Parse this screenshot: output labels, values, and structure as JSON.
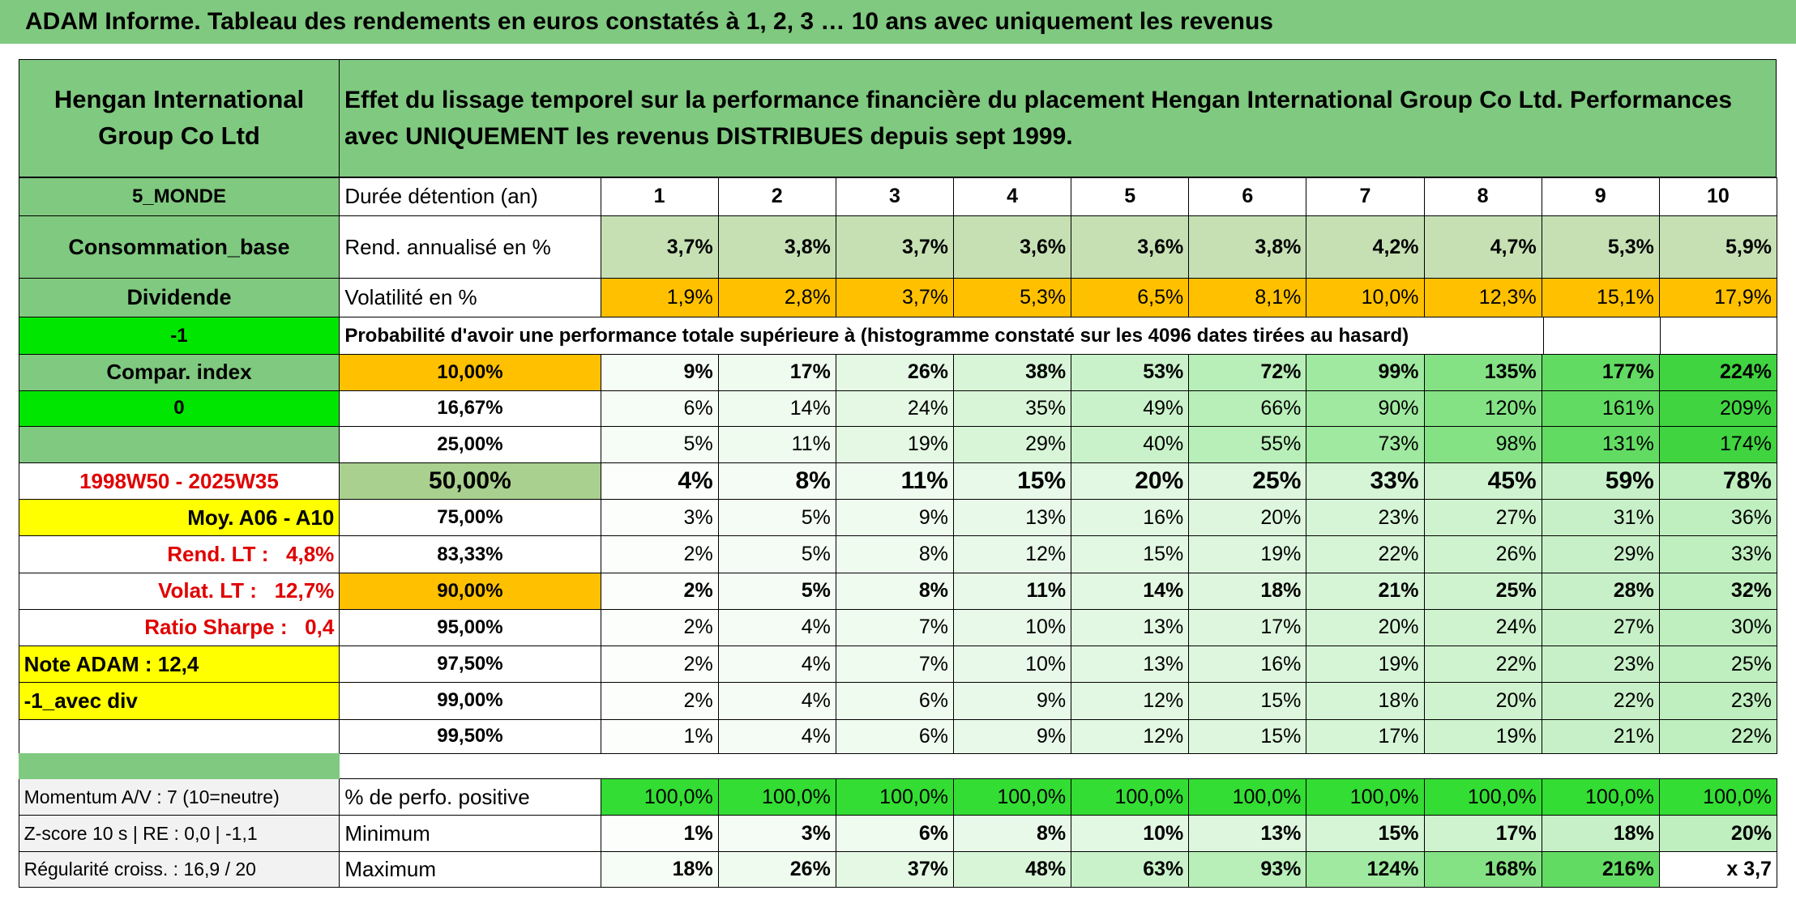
{
  "title": "ADAM Informe. Tableau des rendements en euros constatés à 1, 2, 3 … 10 ans avec uniquement les revenus",
  "header": {
    "fund": "Hengan International Group Co Ltd",
    "description": "Effet du lissage temporel sur la performance financière du placement Hengan International Group Co Ltd. Performances avec UNIQUEMENT les revenus DISTRIBUES depuis sept 1999."
  },
  "rows": [
    {
      "left": "5_MONDE",
      "label": "Durée détention (an)",
      "cells": [
        "1",
        "2",
        "3",
        "4",
        "5",
        "6",
        "7",
        "8",
        "9",
        "10"
      ]
    },
    {
      "left": "Consommation_base",
      "label": "Rend. annualisé en %",
      "cells": [
        "3,7%",
        "3,8%",
        "3,7%",
        "3,6%",
        "3,6%",
        "3,8%",
        "4,2%",
        "4,7%",
        "5,3%",
        "5,9%"
      ]
    },
    {
      "left": "Dividende",
      "label": "Volatilité en %",
      "cells": [
        "1,9%",
        "2,8%",
        "3,7%",
        "5,3%",
        "6,5%",
        "8,1%",
        "10,0%",
        "12,3%",
        "15,1%",
        "17,9%"
      ]
    },
    {
      "left": "-1",
      "label": "Probabilité d'avoir une performance totale supérieure à (histogramme constaté sur les 4096 dates tirées au hasard)"
    },
    {
      "left": "Compar. index",
      "label": "10,00%",
      "cells": [
        "9%",
        "17%",
        "26%",
        "38%",
        "53%",
        "72%",
        "99%",
        "135%",
        "177%",
        "224%"
      ]
    },
    {
      "left": "0",
      "label": "16,67%",
      "cells": [
        "6%",
        "14%",
        "24%",
        "35%",
        "49%",
        "66%",
        "90%",
        "120%",
        "161%",
        "209%"
      ]
    },
    {
      "left": null,
      "label": "25,00%",
      "cells": [
        "5%",
        "11%",
        "19%",
        "29%",
        "40%",
        "55%",
        "73%",
        "98%",
        "131%",
        "174%"
      ]
    },
    {
      "left": "1998W50 - 2025W35",
      "label": "50,00%",
      "cells": [
        "4%",
        "8%",
        "11%",
        "15%",
        "20%",
        "25%",
        "33%",
        "45%",
        "59%",
        "78%"
      ]
    },
    {
      "left": "Moy. A06 - A10",
      "label": "75,00%",
      "cells": [
        "3%",
        "5%",
        "9%",
        "13%",
        "16%",
        "20%",
        "23%",
        "27%",
        "31%",
        "36%"
      ]
    },
    {
      "left": "Rend. LT :   4,8%",
      "label": "83,33%",
      "cells": [
        "2%",
        "5%",
        "8%",
        "12%",
        "15%",
        "19%",
        "22%",
        "26%",
        "29%",
        "33%"
      ]
    },
    {
      "left": "Volat. LT :   12,7%",
      "label": "90,00%",
      "cells": [
        "2%",
        "5%",
        "8%",
        "11%",
        "14%",
        "18%",
        "21%",
        "25%",
        "28%",
        "32%"
      ]
    },
    {
      "left": "Ratio Sharpe :   0,4",
      "label": "95,00%",
      "cells": [
        "2%",
        "4%",
        "7%",
        "10%",
        "13%",
        "17%",
        "20%",
        "24%",
        "27%",
        "30%"
      ]
    },
    {
      "left": "Note ADAM : 12,4",
      "label": "97,50%",
      "cells": [
        "2%",
        "4%",
        "7%",
        "10%",
        "13%",
        "16%",
        "19%",
        "22%",
        "23%",
        "25%"
      ]
    },
    {
      "left": "-1_avec div",
      "label": "99,00%",
      "cells": [
        "2%",
        "4%",
        "6%",
        "9%",
        "12%",
        "15%",
        "18%",
        "20%",
        "22%",
        "23%"
      ]
    },
    {
      "left": null,
      "label": "99,50%",
      "cells": [
        "1%",
        "4%",
        "6%",
        "9%",
        "12%",
        "15%",
        "17%",
        "19%",
        "21%",
        "22%"
      ]
    },
    {
      "left": "Momentum A/V : 7 (10=neutre)",
      "label": "% de perfo. positive",
      "cells": [
        "100,0%",
        "100,0%",
        "100,0%",
        "100,0%",
        "100,0%",
        "100,0%",
        "100,0%",
        "100,0%",
        "100,0%",
        "100,0%"
      ]
    },
    {
      "left": "Z-score 10 s | RE : 0,0 | -1,1",
      "label": "Minimum",
      "cells": [
        "1%",
        "3%",
        "6%",
        "8%",
        "10%",
        "13%",
        "15%",
        "17%",
        "18%",
        "20%"
      ]
    },
    {
      "left": "Régularité croiss. : 16,9 / 20",
      "label": "Maximum",
      "cells": [
        "18%",
        "26%",
        "37%",
        "48%",
        "63%",
        "93%",
        "124%",
        "168%",
        "216%",
        "x 3,7"
      ]
    }
  ]
}
